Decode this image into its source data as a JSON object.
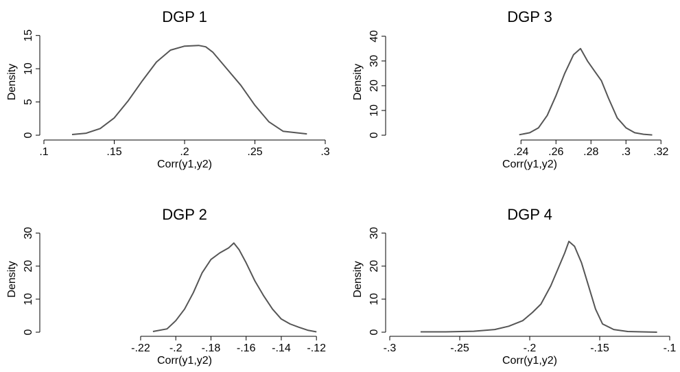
{
  "chart_data": [
    {
      "type": "line",
      "title": "DGP 1",
      "xlabel": "Corr(y1,y2)",
      "ylabel": "Density",
      "xlim": [
        0.1,
        0.3
      ],
      "ylim": [
        0,
        16
      ],
      "xticks": [
        0.1,
        0.15,
        0.2,
        0.25,
        0.3
      ],
      "xtick_labels": [
        ".1",
        ".15",
        ".2",
        ".25",
        ".3"
      ],
      "yticks": [
        0,
        5,
        10,
        15
      ],
      "ytick_labels": [
        "0",
        "5",
        "10",
        "15"
      ],
      "series": [
        {
          "x": [
            0.12,
            0.13,
            0.14,
            0.15,
            0.16,
            0.17,
            0.18,
            0.19,
            0.2,
            0.21,
            0.215,
            0.22,
            0.23,
            0.24,
            0.25,
            0.26,
            0.27,
            0.287
          ],
          "y": [
            0.1,
            0.3,
            1.0,
            2.6,
            5.2,
            8.2,
            11.0,
            12.8,
            13.4,
            13.5,
            13.3,
            12.5,
            10.0,
            7.5,
            4.5,
            2.0,
            0.6,
            0.2
          ]
        }
      ]
    },
    {
      "type": "line",
      "title": "DGP 3",
      "xlabel": "Corr(y1,y2)",
      "ylabel": "Density",
      "xlim": [
        0.165,
        0.325
      ],
      "ylim": [
        0,
        43
      ],
      "xticks": [
        0.24,
        0.26,
        0.28,
        0.3,
        0.32
      ],
      "xtick_labels": [
        ".24",
        ".26",
        ".28",
        ".3",
        ".32"
      ],
      "yticks": [
        0,
        10,
        20,
        30,
        40
      ],
      "ytick_labels": [
        "0",
        "10",
        "20",
        "30",
        "40"
      ],
      "series": [
        {
          "x": [
            0.239,
            0.245,
            0.25,
            0.255,
            0.26,
            0.265,
            0.27,
            0.274,
            0.278,
            0.282,
            0.286,
            0.29,
            0.295,
            0.3,
            0.305,
            0.31,
            0.315
          ],
          "y": [
            0.2,
            1.0,
            3.0,
            8.0,
            16.0,
            25.0,
            32.5,
            35.0,
            30.0,
            26.0,
            22.0,
            15.0,
            7.0,
            3.0,
            1.0,
            0.4,
            0.1
          ]
        }
      ]
    },
    {
      "type": "line",
      "title": "DGP 2",
      "xlabel": "Corr(y1,y2)",
      "ylabel": "Density",
      "xlim": [
        -0.275,
        -0.115
      ],
      "ylim": [
        0,
        32
      ],
      "xticks": [
        -0.22,
        -0.2,
        -0.18,
        -0.16,
        -0.14,
        -0.12
      ],
      "xtick_labels": [
        "-.22",
        "-.2",
        "-.18",
        "-.16",
        "-.14",
        "-.12"
      ],
      "yticks": [
        0,
        10,
        20,
        30
      ],
      "ytick_labels": [
        "0",
        "10",
        "20",
        "30"
      ],
      "series": [
        {
          "x": [
            -0.213,
            -0.205,
            -0.2,
            -0.195,
            -0.19,
            -0.185,
            -0.18,
            -0.175,
            -0.17,
            -0.167,
            -0.164,
            -0.16,
            -0.155,
            -0.15,
            -0.145,
            -0.14,
            -0.135,
            -0.13,
            -0.125,
            -0.12
          ],
          "y": [
            0.2,
            1.0,
            3.5,
            7.0,
            12.0,
            18.0,
            22.0,
            24.0,
            25.5,
            27.0,
            25.0,
            21.0,
            15.5,
            11.0,
            7.0,
            4.0,
            2.5,
            1.5,
            0.6,
            0.1
          ]
        }
      ]
    },
    {
      "type": "line",
      "title": "DGP 4",
      "xlabel": "Corr(y1,y2)",
      "ylabel": "Density",
      "xlim": [
        -0.3,
        -0.1
      ],
      "ylim": [
        0,
        32
      ],
      "xticks": [
        -0.3,
        -0.25,
        -0.2,
        -0.15,
        -0.1
      ],
      "xtick_labels": [
        "-.3",
        "-.25",
        "-.2",
        "-.15",
        "-.1"
      ],
      "yticks": [
        0,
        10,
        20,
        30
      ],
      "ytick_labels": [
        "0",
        "10",
        "20",
        "30"
      ],
      "series": [
        {
          "x": [
            -0.278,
            -0.26,
            -0.24,
            -0.225,
            -0.215,
            -0.205,
            -0.198,
            -0.192,
            -0.185,
            -0.18,
            -0.175,
            -0.172,
            -0.168,
            -0.163,
            -0.158,
            -0.153,
            -0.148,
            -0.14,
            -0.13,
            -0.12,
            -0.109
          ],
          "y": [
            0.1,
            0.1,
            0.3,
            0.8,
            1.8,
            3.5,
            6.0,
            8.5,
            14.0,
            19.0,
            24.0,
            27.5,
            26.0,
            21.0,
            14.0,
            7.0,
            2.5,
            0.8,
            0.2,
            0.1,
            0.0
          ]
        }
      ]
    }
  ]
}
